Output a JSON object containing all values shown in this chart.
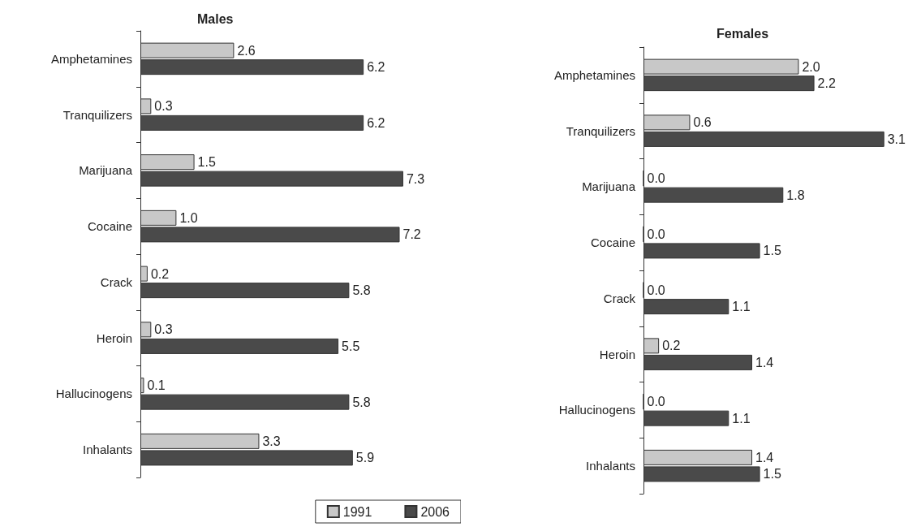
{
  "chart_data": [
    {
      "type": "bar",
      "orientation": "horizontal",
      "title": "Males",
      "categories": [
        "Amphetamines",
        "Tranquilizers",
        "Marijuana",
        "Cocaine",
        "Crack",
        "Heroin",
        "Hallucinogens",
        "Inhalants"
      ],
      "series": [
        {
          "name": "1991",
          "color": "#c8c8c8",
          "values": [
            2.6,
            0.3,
            1.5,
            1.0,
            0.2,
            0.3,
            0.1,
            3.3
          ],
          "value_labels": [
            "2.6",
            "0.3",
            "1.5",
            "1.0",
            "0.2",
            "0.3",
            "0.1",
            "3.3"
          ]
        },
        {
          "name": "2006",
          "color": "#4a4a4a",
          "values": [
            6.2,
            6.2,
            7.3,
            7.2,
            5.8,
            5.5,
            5.8,
            5.9
          ],
          "value_labels": [
            "6.2",
            "6.2",
            "7.3",
            "7.2",
            "5.8",
            "5.5",
            "5.8",
            "5.9"
          ]
        }
      ],
      "legend": "bottom right",
      "grid": false
    },
    {
      "type": "bar",
      "orientation": "horizontal",
      "title": "Females",
      "categories": [
        "Amphetamines",
        "Tranquilizers",
        "Marijuana",
        "Cocaine",
        "Crack",
        "Heroin",
        "Hallucinogens",
        "Inhalants"
      ],
      "series": [
        {
          "color": "#c8c8c8",
          "values": [
            2.0,
            0.6,
            0.0,
            0.0,
            0.0,
            0.2,
            0.0,
            1.4
          ],
          "value_labels": [
            "2.0",
            "0.6",
            "0.0",
            "0.0",
            "0.0",
            "0.2",
            "0.0",
            "1.4"
          ]
        },
        {
          "color": "#4a4a4a",
          "values": [
            2.2,
            3.1,
            1.8,
            1.5,
            1.1,
            1.4,
            1.1,
            1.5
          ],
          "value_labels": [
            "2.2",
            "3.1",
            "1.8",
            "1.5",
            "1.1",
            "1.4",
            "1.1",
            "1.5"
          ]
        }
      ],
      "legend": false,
      "grid": false
    }
  ]
}
